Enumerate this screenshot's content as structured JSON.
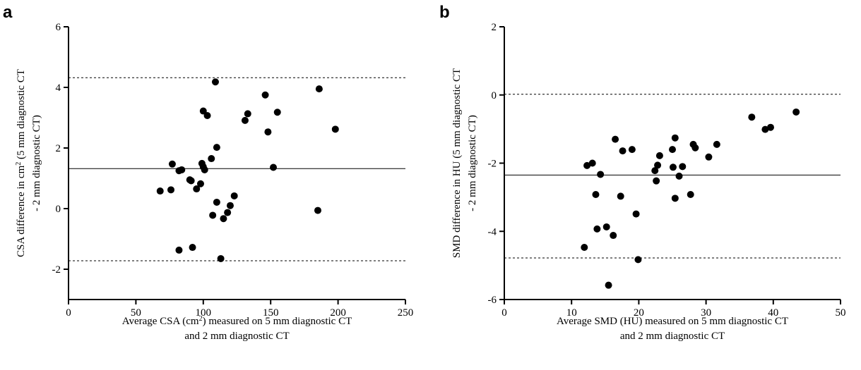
{
  "chart_data": [
    {
      "type": "scatter",
      "panel_label": "a",
      "xlabel_lines": [
        [
          "Average CSA (cm",
          "2",
          ") measured on 5 mm diagnostic CT"
        ],
        [
          "and 2 mm diagnostic CT"
        ]
      ],
      "ylabel_lines": [
        [
          "CSA difference in cm",
          "2",
          " (5 mm diagnostic CT"
        ],
        [
          "- 2 mm diagnostic CT)"
        ]
      ],
      "xlim": [
        0,
        250
      ],
      "ylim": [
        -3,
        6
      ],
      "xticks": [
        0,
        50,
        100,
        150,
        200,
        250
      ],
      "yticks": [
        -2,
        0,
        2,
        4,
        6
      ],
      "mean_line": 1.32,
      "limits_of_agreement": [
        4.32,
        -1.72
      ],
      "points": [
        [
          68,
          0.58
        ],
        [
          76,
          0.62
        ],
        [
          77,
          1.47
        ],
        [
          82,
          1.25
        ],
        [
          84,
          1.28
        ],
        [
          82,
          -1.37
        ],
        [
          90,
          0.95
        ],
        [
          92,
          -1.28
        ],
        [
          91,
          0.92
        ],
        [
          95,
          0.65
        ],
        [
          98,
          0.82
        ],
        [
          99,
          1.49
        ],
        [
          100,
          1.38
        ],
        [
          100,
          3.22
        ],
        [
          101,
          1.28
        ],
        [
          103,
          3.07
        ],
        [
          106,
          1.65
        ],
        [
          107,
          -0.22
        ],
        [
          109,
          4.18
        ],
        [
          110,
          2.02
        ],
        [
          110,
          0.21
        ],
        [
          113,
          -1.65
        ],
        [
          115,
          -0.33
        ],
        [
          118,
          -0.13
        ],
        [
          120,
          0.1
        ],
        [
          123,
          0.42
        ],
        [
          131,
          2.91
        ],
        [
          133,
          3.13
        ],
        [
          146,
          3.75
        ],
        [
          148,
          2.53
        ],
        [
          152,
          1.36
        ],
        [
          155,
          3.18
        ],
        [
          185,
          -0.06
        ],
        [
          186,
          3.95
        ],
        [
          198,
          2.62
        ]
      ]
    },
    {
      "type": "scatter",
      "panel_label": "b",
      "xlabel_lines": [
        [
          "Average SMD (HU) measured on 5 mm diagnostic CT"
        ],
        [
          "and 2 mm diagnostic CT"
        ]
      ],
      "ylabel_lines": [
        [
          "SMD difference in HU (5 mm diagnostic CT"
        ],
        [
          "- 2 mm diagnostic CT)"
        ]
      ],
      "xlim": [
        0,
        50
      ],
      "ylim": [
        -6,
        2
      ],
      "xticks": [
        0,
        10,
        20,
        30,
        40,
        50
      ],
      "yticks": [
        -6,
        -4,
        -2,
        0,
        2
      ],
      "mean_line": -2.35,
      "limits_of_agreement": [
        0.02,
        -4.78
      ],
      "points": [
        [
          11.9,
          -4.47
        ],
        [
          12.3,
          -2.07
        ],
        [
          13.1,
          -2.0
        ],
        [
          13.6,
          -2.92
        ],
        [
          13.8,
          -3.93
        ],
        [
          14.3,
          -2.33
        ],
        [
          15.2,
          -3.87
        ],
        [
          15.5,
          -5.58
        ],
        [
          16.2,
          -4.12
        ],
        [
          16.5,
          -1.3
        ],
        [
          17.3,
          -2.97
        ],
        [
          17.6,
          -1.64
        ],
        [
          19.0,
          -1.6
        ],
        [
          19.6,
          -3.49
        ],
        [
          19.9,
          -4.83
        ],
        [
          22.4,
          -2.22
        ],
        [
          22.6,
          -2.52
        ],
        [
          22.8,
          -2.06
        ],
        [
          23.1,
          -1.78
        ],
        [
          25.0,
          -1.6
        ],
        [
          25.1,
          -2.12
        ],
        [
          25.4,
          -1.26
        ],
        [
          25.4,
          -3.03
        ],
        [
          26.0,
          -2.38
        ],
        [
          26.5,
          -2.1
        ],
        [
          27.7,
          -2.92
        ],
        [
          28.1,
          -1.45
        ],
        [
          28.4,
          -1.55
        ],
        [
          30.4,
          -1.82
        ],
        [
          31.6,
          -1.45
        ],
        [
          36.8,
          -0.65
        ],
        [
          38.8,
          -1.01
        ],
        [
          39.6,
          -0.95
        ],
        [
          43.4,
          -0.5
        ]
      ]
    }
  ]
}
